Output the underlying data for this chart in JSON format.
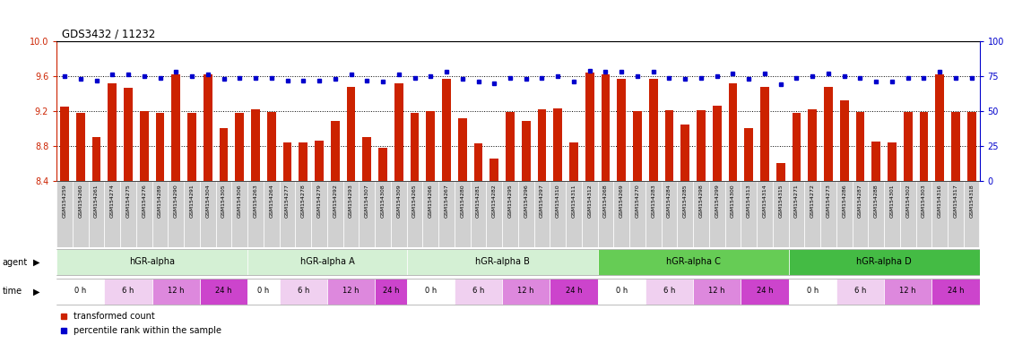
{
  "title": "GDS3432 / 11232",
  "gsm_labels": [
    "GSM154259",
    "GSM154260",
    "GSM154261",
    "GSM154274",
    "GSM154275",
    "GSM154276",
    "GSM154289",
    "GSM154290",
    "GSM154291",
    "GSM154304",
    "GSM154305",
    "GSM154306",
    "GSM154263",
    "GSM154264",
    "GSM154277",
    "GSM154278",
    "GSM154279",
    "GSM154292",
    "GSM154293",
    "GSM154307",
    "GSM154308",
    "GSM154309",
    "GSM154265",
    "GSM154266",
    "GSM154267",
    "GSM154280",
    "GSM154281",
    "GSM154282",
    "GSM154295",
    "GSM154296",
    "GSM154297",
    "GSM154310",
    "GSM154311",
    "GSM154312",
    "GSM154268",
    "GSM154269",
    "GSM154270",
    "GSM154283",
    "GSM154284",
    "GSM154285",
    "GSM154298",
    "GSM154299",
    "GSM154300",
    "GSM154313",
    "GSM154314",
    "GSM154315",
    "GSM154271",
    "GSM154272",
    "GSM154273",
    "GSM154286",
    "GSM154287",
    "GSM154288",
    "GSM154301",
    "GSM154302",
    "GSM154303",
    "GSM154316",
    "GSM154317",
    "GSM154318"
  ],
  "bar_values": [
    9.25,
    9.18,
    8.9,
    9.52,
    9.47,
    9.2,
    9.18,
    9.62,
    9.18,
    9.62,
    9.0,
    9.18,
    9.22,
    9.19,
    8.84,
    8.84,
    8.86,
    9.09,
    9.48,
    8.9,
    8.78,
    9.52,
    9.18,
    9.2,
    9.57,
    9.12,
    8.83,
    8.65,
    9.19,
    9.09,
    9.22,
    9.23,
    8.84,
    9.64,
    9.62,
    9.57,
    9.2,
    9.57,
    9.21,
    9.04,
    9.21,
    9.26,
    9.52,
    9.0,
    9.48,
    8.6,
    9.18,
    9.22,
    9.48,
    9.32,
    9.19,
    8.85,
    8.84,
    9.19,
    9.19,
    9.62,
    9.19,
    9.19
  ],
  "percentile_values": [
    75,
    73,
    72,
    76,
    76,
    75,
    74,
    78,
    75,
    76,
    73,
    74,
    74,
    74,
    72,
    72,
    72,
    73,
    76,
    72,
    71,
    76,
    74,
    75,
    78,
    73,
    71,
    70,
    74,
    73,
    74,
    75,
    71,
    79,
    78,
    78,
    75,
    78,
    74,
    73,
    74,
    75,
    77,
    73,
    77,
    69,
    74,
    75,
    77,
    75,
    74,
    71,
    71,
    74,
    74,
    78,
    74,
    74
  ],
  "agent_groups": [
    {
      "label": "hGR-alpha",
      "count": 12,
      "color": "#d4f0d4"
    },
    {
      "label": "hGR-alpha A",
      "count": 10,
      "color": "#d4f0d4"
    },
    {
      "label": "hGR-alpha B",
      "count": 12,
      "color": "#d4f0d4"
    },
    {
      "label": "hGR-alpha C",
      "count": 12,
      "color": "#66cc66"
    },
    {
      "label": "hGR-alpha D",
      "count": 12,
      "color": "#44bb44"
    }
  ],
  "time_colors": {
    "0 h": "#ffffff",
    "6 h": "#f0d0f0",
    "12 h": "#dd88dd",
    "24 h": "#cc44cc"
  },
  "time_schedule": [
    {
      "label": "0 h",
      "count": 3
    },
    {
      "label": "6 h",
      "count": 3
    },
    {
      "label": "12 h",
      "count": 3
    },
    {
      "label": "24 h",
      "count": 3
    },
    {
      "label": "0 h",
      "count": 2
    },
    {
      "label": "6 h",
      "count": 3
    },
    {
      "label": "12 h",
      "count": 3
    },
    {
      "label": "24 h",
      "count": 2
    },
    {
      "label": "0 h",
      "count": 3
    },
    {
      "label": "6 h",
      "count": 3
    },
    {
      "label": "12 h",
      "count": 3
    },
    {
      "label": "24 h",
      "count": 3
    },
    {
      "label": "0 h",
      "count": 3
    },
    {
      "label": "6 h",
      "count": 3
    },
    {
      "label": "12 h",
      "count": 3
    },
    {
      "label": "24 h",
      "count": 3
    },
    {
      "label": "0 h",
      "count": 3
    },
    {
      "label": "6 h",
      "count": 3
    },
    {
      "label": "12 h",
      "count": 3
    },
    {
      "label": "24 h",
      "count": 3
    }
  ],
  "ylim": [
    8.4,
    10.0
  ],
  "yticks_left": [
    8.4,
    8.8,
    9.2,
    9.6,
    10.0
  ],
  "yticks_right": [
    0,
    25,
    50,
    75,
    100
  ],
  "bar_color": "#cc2200",
  "dot_color": "#0000cc",
  "label_bg": "#d0d0d0",
  "agent_colors": [
    "#d4f0d4",
    "#d4f0d4",
    "#d4f0d4",
    "#66cc66",
    "#44bb44"
  ]
}
